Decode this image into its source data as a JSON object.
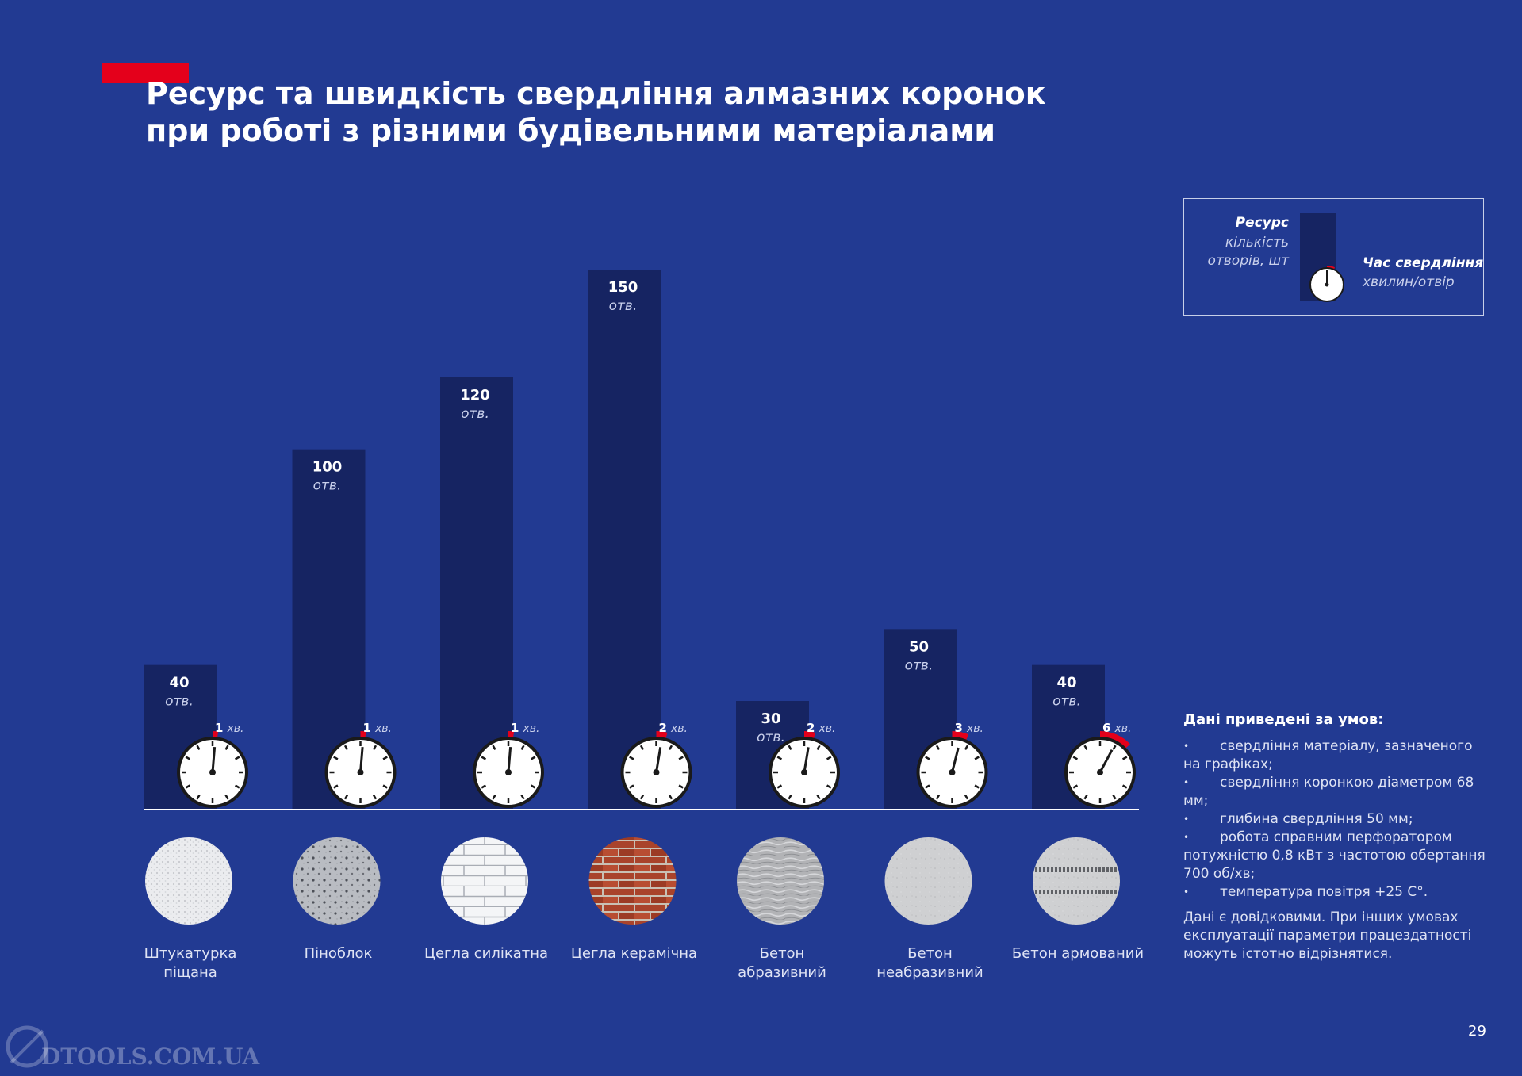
{
  "header": {
    "title_line1": "Ресурс та швидкість свердління алмазних коронок",
    "title_line2": "при роботі з різними будівельними матеріалами"
  },
  "legend": {
    "resource_title": "Ресурс",
    "resource_sub_line1": "кількість",
    "resource_sub_line2": "отворів, шт",
    "time_title": "Час свердління",
    "time_sub": "хвилин/отвір"
  },
  "chart_data": {
    "type": "bar",
    "title": "Ресурс та швидкість свердління алмазних коронок при роботі з різними будівельними матеріалами",
    "categories": [
      "Штукатурка піщана",
      "Піноблок",
      "Цегла силікатна",
      "Цегла керамічна",
      "Бетон абразивний",
      "Бетон неабразивний",
      "Бетон армований"
    ],
    "category_lines": [
      [
        "Штукатурка",
        "піщана"
      ],
      [
        "Піноблок"
      ],
      [
        "Цегла силікатна"
      ],
      [
        "Цегла керамічна"
      ],
      [
        "Бетон",
        "абразивний"
      ],
      [
        "Бетон",
        "неабразивний"
      ],
      [
        "Бетон армований"
      ]
    ],
    "series": [
      {
        "name": "Ресурс (кількість отворів, шт)",
        "values": [
          40,
          100,
          120,
          150,
          30,
          50,
          40
        ],
        "unit_label": "отв."
      },
      {
        "name": "Час свердління (хвилин/отвір)",
        "values": [
          1,
          1,
          1,
          2,
          2,
          3,
          6
        ],
        "unit_label": "хв."
      }
    ],
    "ylim": [
      0,
      150
    ],
    "xlabel": "",
    "ylabel": ""
  },
  "colors": {
    "background": "#223a92",
    "bar": "#162462",
    "accent": "#e4001b"
  },
  "materials": {
    "icons": [
      "plaster-texture-icon",
      "foam-block-texture-icon",
      "silicate-brick-texture-icon",
      "ceramic-brick-texture-icon",
      "abrasive-concrete-texture-icon",
      "non-abrasive-concrete-texture-icon",
      "reinforced-concrete-texture-icon"
    ]
  },
  "conditions": {
    "title": "Дані приведені за умов:",
    "items": [
      "свердління матеріалу, зазначеного на графіках;",
      "свердління коронкою діаметром 68 мм;",
      "глибина свердління 50 мм;",
      "робота справним перфоратором потужністю 0,8 кВт з частотою обертання 700 об/хв;",
      "температура повітря +25 С°."
    ],
    "note": "Дані є довідковими. При інших умовах експлуатації параметри працездатності можуть істотно відрізнятися."
  },
  "footer": {
    "page_number": "29",
    "watermark": "DTOOLS.COM.UA"
  }
}
